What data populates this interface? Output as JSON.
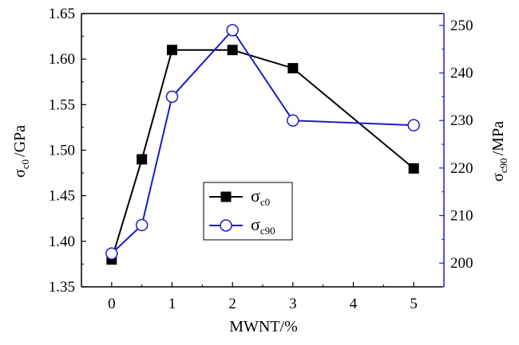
{
  "chart_data": {
    "type": "line",
    "xlabel": "MWNT/%",
    "ylabel_left": {
      "symbol": "σ",
      "sub": "c0",
      "unit": "/GPa"
    },
    "ylabel_right": {
      "symbol": "σ",
      "sub": "c90",
      "unit": "/MPa"
    },
    "xlim": [
      -0.5,
      5.5
    ],
    "xticks": [
      0,
      1,
      2,
      3,
      4,
      5
    ],
    "ylim_left": [
      1.35,
      1.65
    ],
    "yticks_left": [
      "1.35",
      "1.40",
      "1.45",
      "1.50",
      "1.55",
      "1.60",
      "1.65"
    ],
    "ylim_right": [
      195,
      252.5
    ],
    "yticks_right": [
      "200",
      "210",
      "220",
      "230",
      "240",
      "250"
    ],
    "legend": {
      "placement": "center"
    },
    "series": [
      {
        "name": "σc0",
        "label_symbol": "σ",
        "label_sub": "c0",
        "axis": "left",
        "marker": "filled-square",
        "color": "#000000",
        "x": [
          0,
          0.5,
          1,
          2,
          3,
          5
        ],
        "y": [
          1.38,
          1.49,
          1.61,
          1.61,
          1.59,
          1.48
        ]
      },
      {
        "name": "σc90",
        "label_symbol": "σ",
        "label_sub": "c90",
        "axis": "right",
        "marker": "open-circle",
        "color": "#1c1cc8",
        "x": [
          0,
          0.5,
          1,
          2,
          3,
          5
        ],
        "y": [
          202,
          208,
          235,
          249,
          230,
          229
        ]
      }
    ]
  }
}
